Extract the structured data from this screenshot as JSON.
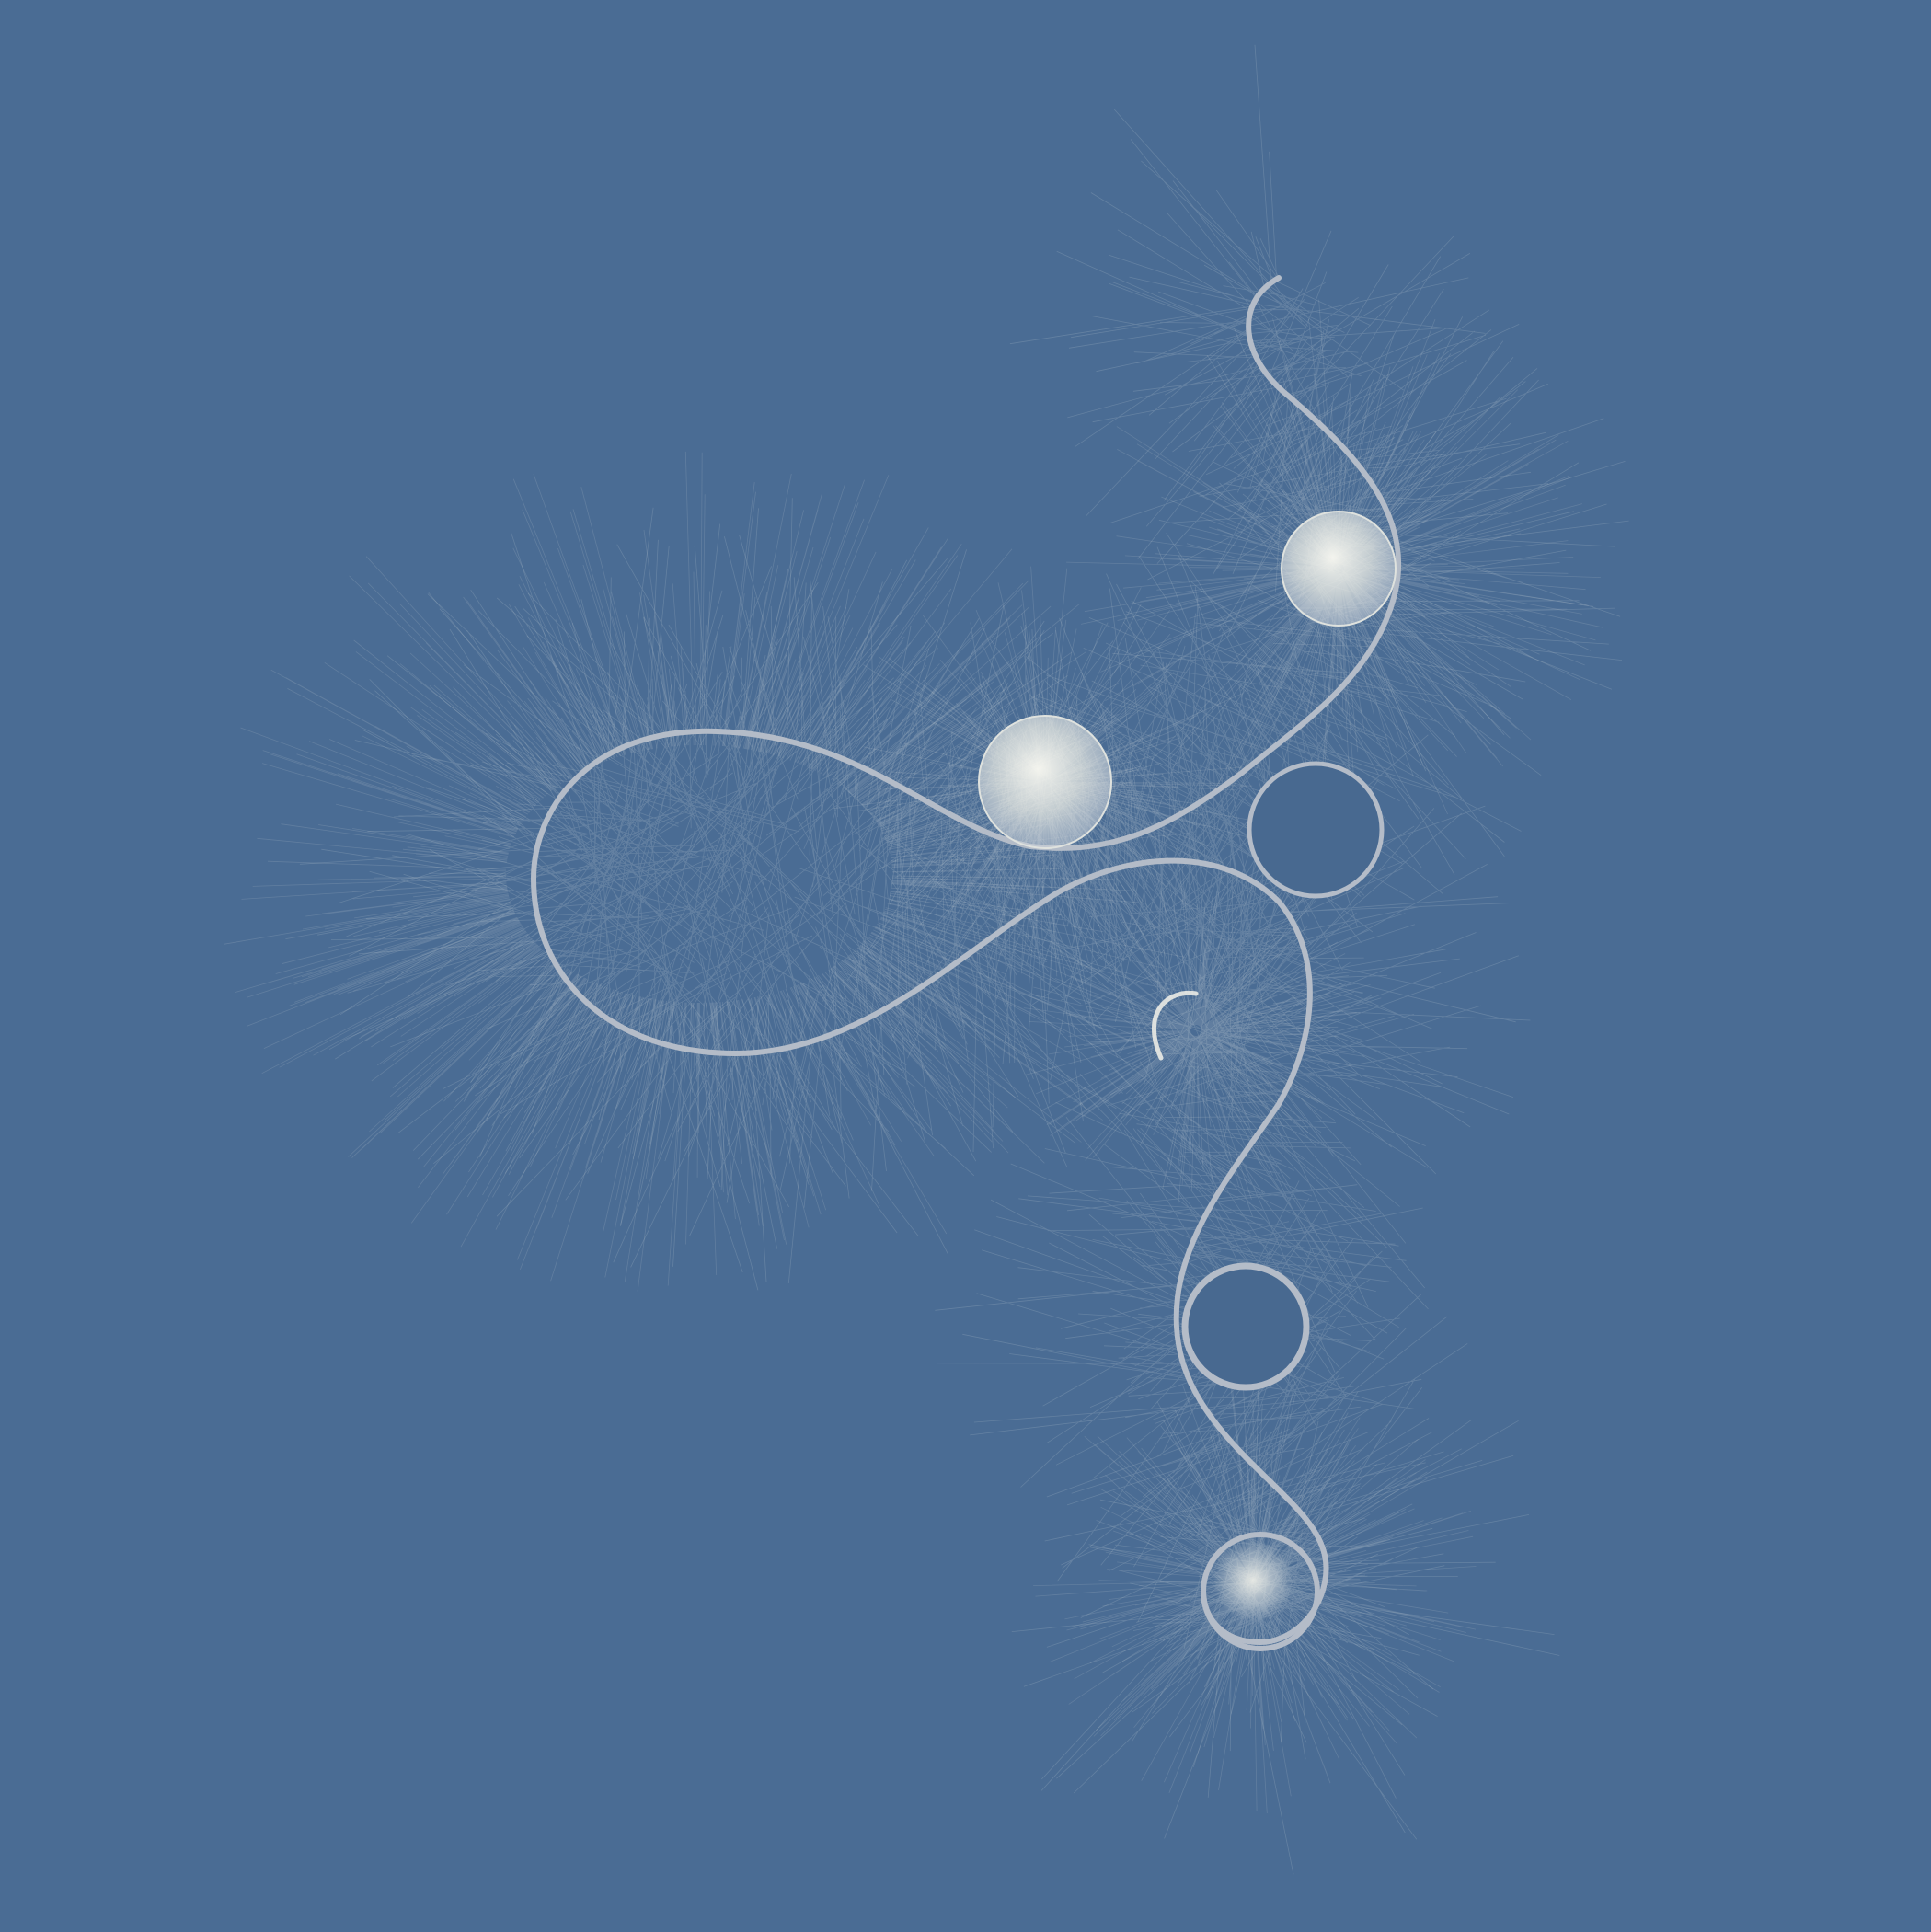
{
  "colors": {
    "background": "#4a6c94",
    "curve": "#b4bcc8",
    "filament": "#eef0ea",
    "glow": "#f6f5ec"
  },
  "elements": [
    "looping-curve",
    "radiating-filaments",
    "glowing-orb",
    "ring"
  ]
}
